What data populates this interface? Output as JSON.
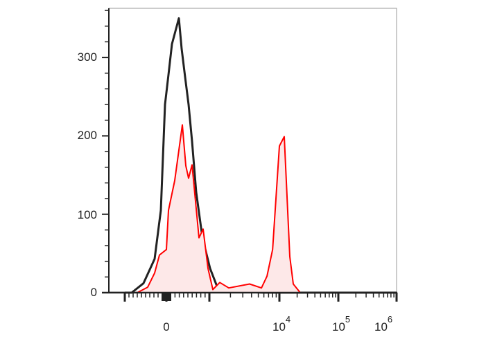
{
  "chart_data": {
    "type": "area",
    "title": "",
    "xlabel": "",
    "ylabel": "",
    "x_scale": "biexponential",
    "xlim": [
      -1300,
      1000000
    ],
    "ylim": [
      0,
      362
    ],
    "grid": false,
    "y_ticks": [
      {
        "value": 0,
        "label": "0"
      },
      {
        "value": 100,
        "label": "100"
      },
      {
        "value": 200,
        "label": "200"
      },
      {
        "value": 300,
        "label": "300"
      }
    ],
    "x_ticks": [
      {
        "value": 0,
        "base": "0",
        "exp": ""
      },
      {
        "value": 10000,
        "base": "10",
        "exp": "4"
      },
      {
        "value": 100000,
        "base": "10",
        "exp": "5"
      },
      {
        "value": 1000000,
        "base": "10",
        "exp": "6"
      }
    ],
    "series": [
      {
        "color": "#222222",
        "fill": "none",
        "points": [
          [
            -1000,
            0
          ],
          [
            -833,
            0
          ],
          [
            -550,
            12
          ],
          [
            -283,
            43
          ],
          [
            -133,
            105
          ],
          [
            -33,
            240
          ],
          [
            48,
            278
          ],
          [
            129,
            317
          ],
          [
            290,
            350
          ],
          [
            355,
            311
          ],
          [
            435,
            275
          ],
          [
            516,
            240
          ],
          [
            597,
            193
          ],
          [
            694,
            128
          ],
          [
            839,
            70
          ],
          [
            1023,
            31
          ],
          [
            1285,
            8
          ],
          [
            2027,
            2
          ],
          [
            5916,
            0
          ],
          [
            61300,
            0
          ],
          [
            1000000,
            0
          ]
        ]
      },
      {
        "color": "#ff0000",
        "fill": "#fde8e8",
        "points": [
          [
            -700,
            0
          ],
          [
            -450,
            7
          ],
          [
            -283,
            25
          ],
          [
            -167,
            48
          ],
          [
            0,
            55
          ],
          [
            48,
            105
          ],
          [
            194,
            143
          ],
          [
            371,
            214
          ],
          [
            452,
            162
          ],
          [
            516,
            146
          ],
          [
            597,
            163
          ],
          [
            758,
            70
          ],
          [
            855,
            81
          ],
          [
            968,
            31
          ],
          [
            1121,
            4
          ],
          [
            1408,
            13
          ],
          [
            1893,
            6
          ],
          [
            3748,
            11
          ],
          [
            5536,
            6
          ],
          [
            6650,
            21
          ],
          [
            7990,
            55
          ],
          [
            10000,
            187
          ],
          [
            12090,
            199
          ],
          [
            15010,
            46
          ],
          [
            17190,
            11
          ],
          [
            22540,
            0
          ]
        ]
      }
    ]
  }
}
